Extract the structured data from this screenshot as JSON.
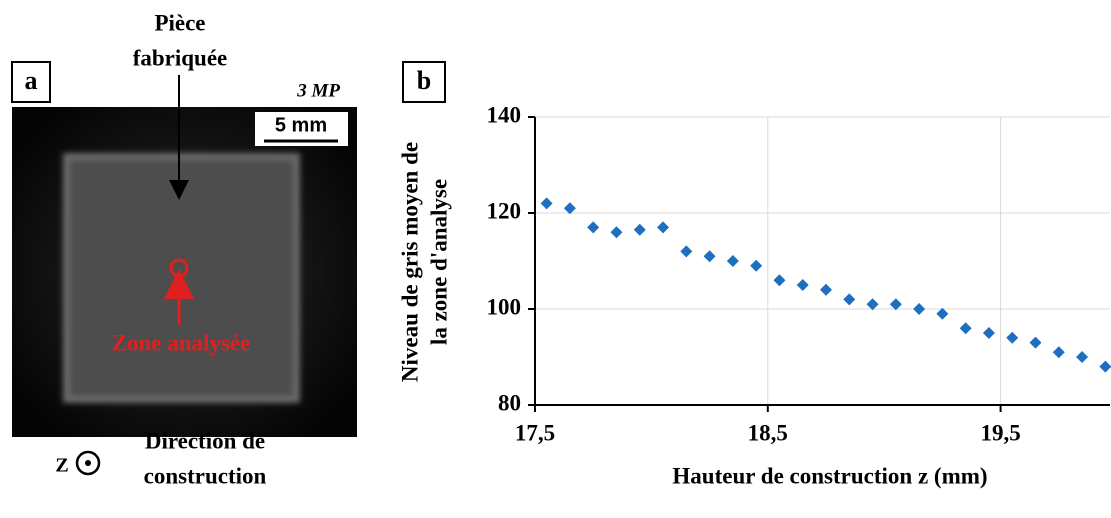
{
  "panel_a": {
    "label": "a",
    "title_lines": [
      "Pièce",
      "fabriquée"
    ],
    "resolution": "3 MP",
    "scale_bar": "5 mm",
    "zone_label": "Zone analysée",
    "axis_symbol": "Z",
    "direction_lines": [
      "Direction de",
      "construction"
    ]
  },
  "chart_data": {
    "type": "scatter",
    "panel_label": "b",
    "xlabel": "Hauteur de construction z (mm)",
    "ylabel_lines": [
      "Niveau de gris moyen de",
      "la zone d'analyse"
    ],
    "x": [
      17.55,
      17.65,
      17.75,
      17.85,
      17.95,
      18.05,
      18.15,
      18.25,
      18.35,
      18.45,
      18.55,
      18.65,
      18.75,
      18.85,
      18.95,
      19.05,
      19.15,
      19.25,
      19.35,
      19.45,
      19.55,
      19.65,
      19.75,
      19.85,
      19.95
    ],
    "values": [
      122,
      121,
      117,
      116,
      116.5,
      117,
      112,
      111,
      110,
      109,
      106,
      105,
      104,
      102,
      101,
      101,
      100,
      99,
      96,
      95,
      94,
      93,
      91,
      90,
      88
    ],
    "color": "#1f6fc0",
    "xlim": [
      17.5,
      19.97
    ],
    "ylim": [
      80,
      140
    ],
    "xticks": [
      {
        "value": 17.5,
        "label": "17,5"
      },
      {
        "value": 18.5,
        "label": "18,5"
      },
      {
        "value": 19.5,
        "label": "19,5"
      }
    ],
    "yticks": [
      80,
      100,
      120,
      140
    ],
    "grid": true
  }
}
